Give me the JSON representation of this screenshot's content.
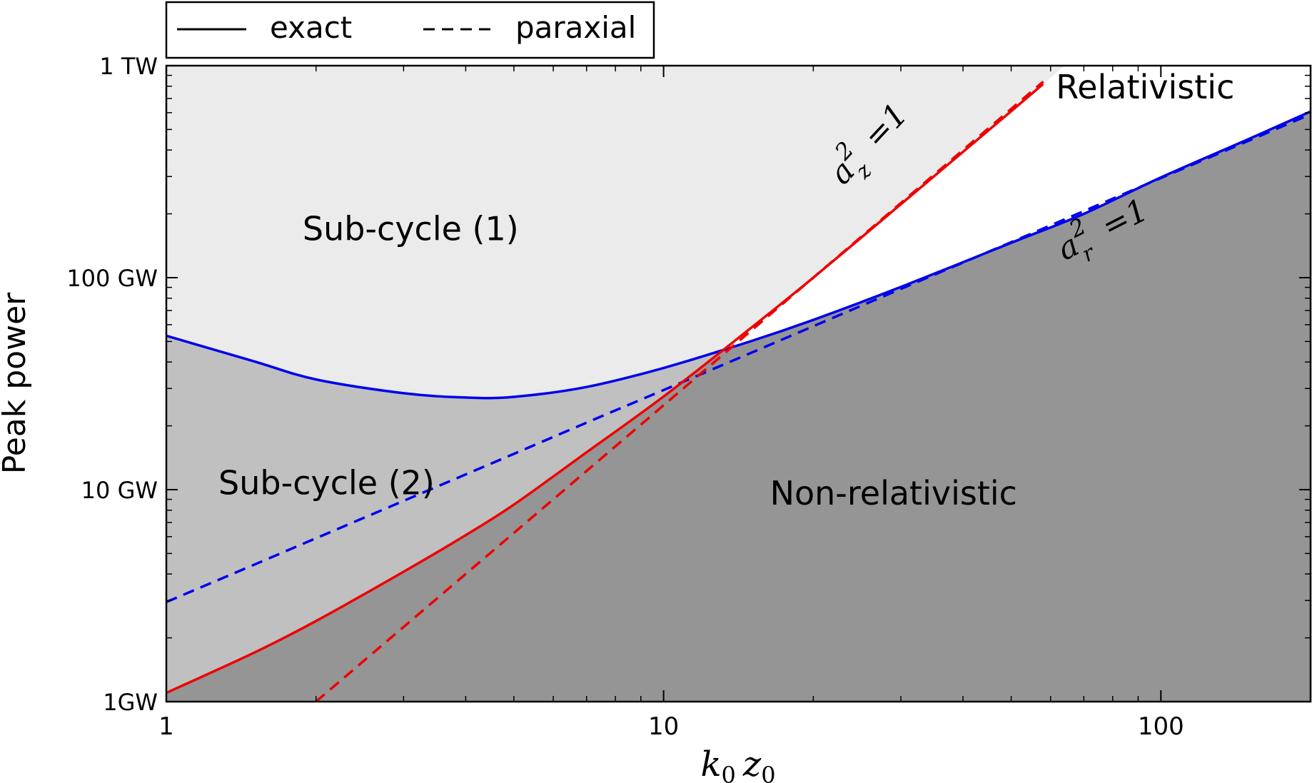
{
  "chart_data": {
    "type": "line",
    "title": "",
    "xlabel_main": "k",
    "xlabel_sub1": "0",
    "xlabel_mid": "z",
    "xlabel_sub2": "0",
    "ylabel": "Peak power",
    "xscale": "log",
    "yscale": "log",
    "xlim": [
      1,
      200
    ],
    "ylim": [
      1,
      1000
    ],
    "x_ticks": [
      {
        "value": 1,
        "label": "1"
      },
      {
        "value": 10,
        "label": "10"
      },
      {
        "value": 100,
        "label": "100"
      }
    ],
    "y_ticks": [
      {
        "value": 1,
        "label": "1GW"
      },
      {
        "value": 10,
        "label": "10 GW"
      },
      {
        "value": 100,
        "label": "100 GW"
      },
      {
        "value": 1000,
        "label": "1 TW"
      }
    ],
    "legend": {
      "position": "top-left, above axes",
      "entries": [
        {
          "label": "exact",
          "style": "solid"
        },
        {
          "label": "paraxial",
          "style": "dashed"
        }
      ]
    },
    "colors": {
      "blue": "#0000ee",
      "red": "#ee0000",
      "light_region": "#ebebeb",
      "mid_region": "#c0c0c0",
      "dark_region": "#959595",
      "white_region": "#ffffff"
    },
    "series": [
      {
        "name": "a_r^2=1 exact",
        "color": "blue",
        "style": "solid",
        "x": [
          1,
          1.5,
          2,
          3,
          4,
          5,
          7,
          10,
          15,
          20,
          30,
          50,
          70,
          100,
          150,
          200
        ],
        "y": [
          53.2,
          40.3,
          33.1,
          28.5,
          27.2,
          27.4,
          30.5,
          37.5,
          50.2,
          63.2,
          90.4,
          146,
          200,
          297,
          450,
          608
        ]
      },
      {
        "name": "a_r^2=1 paraxial",
        "color": "blue",
        "style": "dashed",
        "x": [
          1,
          1.5,
          2,
          3,
          4,
          5,
          7,
          10,
          15,
          20,
          30,
          50,
          70,
          100,
          150,
          200
        ],
        "y": [
          2.95,
          4.42,
          5.9,
          8.85,
          11.8,
          14.75,
          20.7,
          29.5,
          44.2,
          59,
          88.5,
          147,
          206,
          295,
          442,
          590
        ]
      },
      {
        "name": "a_z^2=1 exact",
        "color": "red",
        "style": "solid",
        "x": [
          1,
          1.5,
          2,
          3,
          4,
          5,
          7,
          10,
          15,
          20,
          30,
          40,
          50,
          58
        ],
        "y": [
          1.1,
          1.7,
          2.4,
          4.1,
          6.1,
          8.5,
          15.0,
          27.5,
          58,
          100,
          222,
          392,
          610,
          820
        ]
      },
      {
        "name": "a_z^2=1 paraxial",
        "color": "red",
        "style": "dashed",
        "x": [
          2,
          3,
          4,
          5,
          7,
          10,
          15,
          20,
          30,
          40,
          50,
          58
        ],
        "y": [
          1.0,
          2.25,
          4.0,
          6.25,
          12.25,
          25,
          56.25,
          100,
          225,
          400,
          625,
          841
        ]
      }
    ],
    "region_labels": [
      {
        "text": "Sub-cycle (1)",
        "x": 3.1,
        "y": 150
      },
      {
        "text": "Sub-cycle (2)",
        "x": 2.1,
        "y": 9.5
      },
      {
        "text": "Relativistic",
        "x": 93,
        "y": 700
      },
      {
        "text": "Non-relativistic",
        "x": 29,
        "y": 8.5
      }
    ],
    "annotations": [
      {
        "name": "a_z",
        "base": "a",
        "sup": "2",
        "sub": "z",
        "rhs": "=1",
        "x": 23,
        "y": 270,
        "angle_deg": -47
      },
      {
        "name": "a_r",
        "base": "a",
        "sup": "2",
        "sub": "r",
        "rhs": "=1",
        "x": 64,
        "y": 120,
        "angle_deg": -27
      }
    ]
  }
}
